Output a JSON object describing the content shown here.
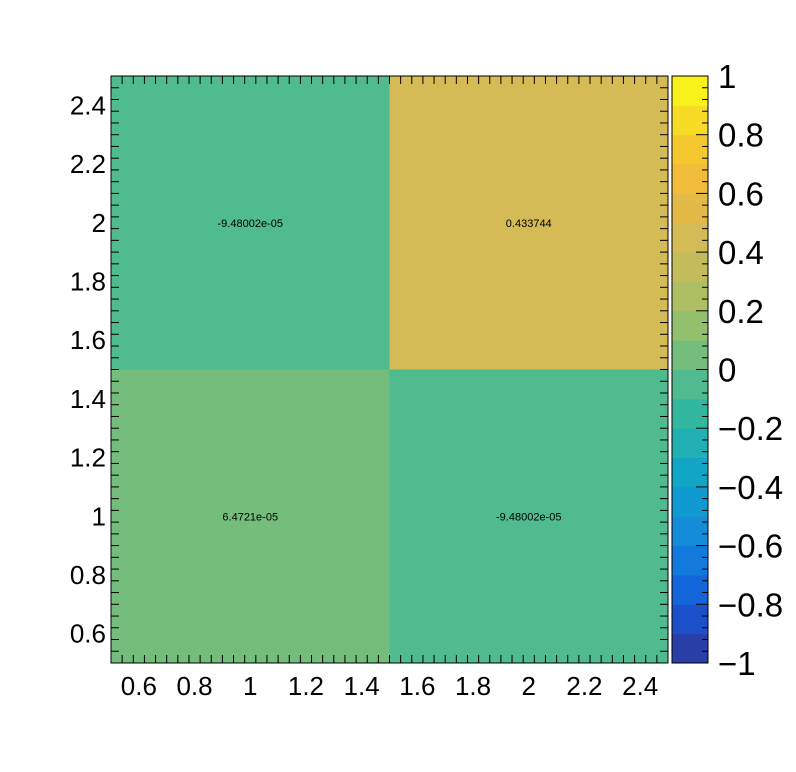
{
  "chart_data": {
    "type": "heatmap",
    "title": "",
    "xlabel": "",
    "ylabel": "",
    "xlim": [
      0.5,
      2.5
    ],
    "ylim": [
      0.5,
      2.5
    ],
    "x_bins": [
      [
        0.5,
        1.5
      ],
      [
        1.5,
        2.5
      ]
    ],
    "y_bins": [
      [
        0.5,
        1.5
      ],
      [
        1.5,
        2.5
      ]
    ],
    "x_ticks": [
      {
        "value": 0.6,
        "label": "0.6"
      },
      {
        "value": 0.8,
        "label": "0.8"
      },
      {
        "value": 1.0,
        "label": "1"
      },
      {
        "value": 1.2,
        "label": "1.2"
      },
      {
        "value": 1.4,
        "label": "1.4"
      },
      {
        "value": 1.6,
        "label": "1.6"
      },
      {
        "value": 1.8,
        "label": "1.8"
      },
      {
        "value": 2.0,
        "label": "2"
      },
      {
        "value": 2.2,
        "label": "2.2"
      },
      {
        "value": 2.4,
        "label": "2.4"
      }
    ],
    "y_ticks": [
      {
        "value": 0.6,
        "label": "0.6"
      },
      {
        "value": 0.8,
        "label": "0.8"
      },
      {
        "value": 1.0,
        "label": "1"
      },
      {
        "value": 1.2,
        "label": "1.2"
      },
      {
        "value": 1.4,
        "label": "1.4"
      },
      {
        "value": 1.6,
        "label": "1.6"
      },
      {
        "value": 1.8,
        "label": "1.8"
      },
      {
        "value": 2.0,
        "label": "2"
      },
      {
        "value": 2.2,
        "label": "2.2"
      },
      {
        "value": 2.4,
        "label": "2.4"
      }
    ],
    "cells": [
      {
        "x": 1,
        "y": 1,
        "value": 6.4721e-05,
        "label": "6.4721e-05"
      },
      {
        "x": 2,
        "y": 1,
        "value": -9.48002e-05,
        "label": "-9.48002e-05"
      },
      {
        "x": 1,
        "y": 2,
        "value": -9.48002e-05,
        "label": "-9.48002e-05"
      },
      {
        "x": 2,
        "y": 2,
        "value": 0.433744,
        "label": "0.433744"
      }
    ],
    "colorbar": {
      "range": [
        -1,
        1
      ],
      "ticks": [
        {
          "value": 1,
          "label": "1"
        },
        {
          "value": 0.8,
          "label": "0.8"
        },
        {
          "value": 0.6,
          "label": "0.6"
        },
        {
          "value": 0.4,
          "label": "0.4"
        },
        {
          "value": 0.2,
          "label": "0.2"
        },
        {
          "value": 0,
          "label": "0"
        },
        {
          "value": -0.2,
          "label": "−0.2"
        },
        {
          "value": -0.4,
          "label": "−0.4"
        },
        {
          "value": -0.6,
          "label": "−0.6"
        },
        {
          "value": -0.8,
          "label": "−0.8"
        },
        {
          "value": -1,
          "label": "−1"
        }
      ],
      "colors_bottom_to_top": [
        "#2a3ea8",
        "#1c4fca",
        "#1265da",
        "#137add",
        "#158cd8",
        "#0f9ad1",
        "#11a6c6",
        "#21b0b4",
        "#32b8a0",
        "#4fbb8f",
        "#74bd7c",
        "#93c06c",
        "#adbf62",
        "#c4bc5b",
        "#d4bb55",
        "#e3b948",
        "#f0bc3a",
        "#f6c82f",
        "#f6dc24",
        "#f9f11a"
      ]
    },
    "grid": false,
    "legend": "colorbar-right"
  }
}
